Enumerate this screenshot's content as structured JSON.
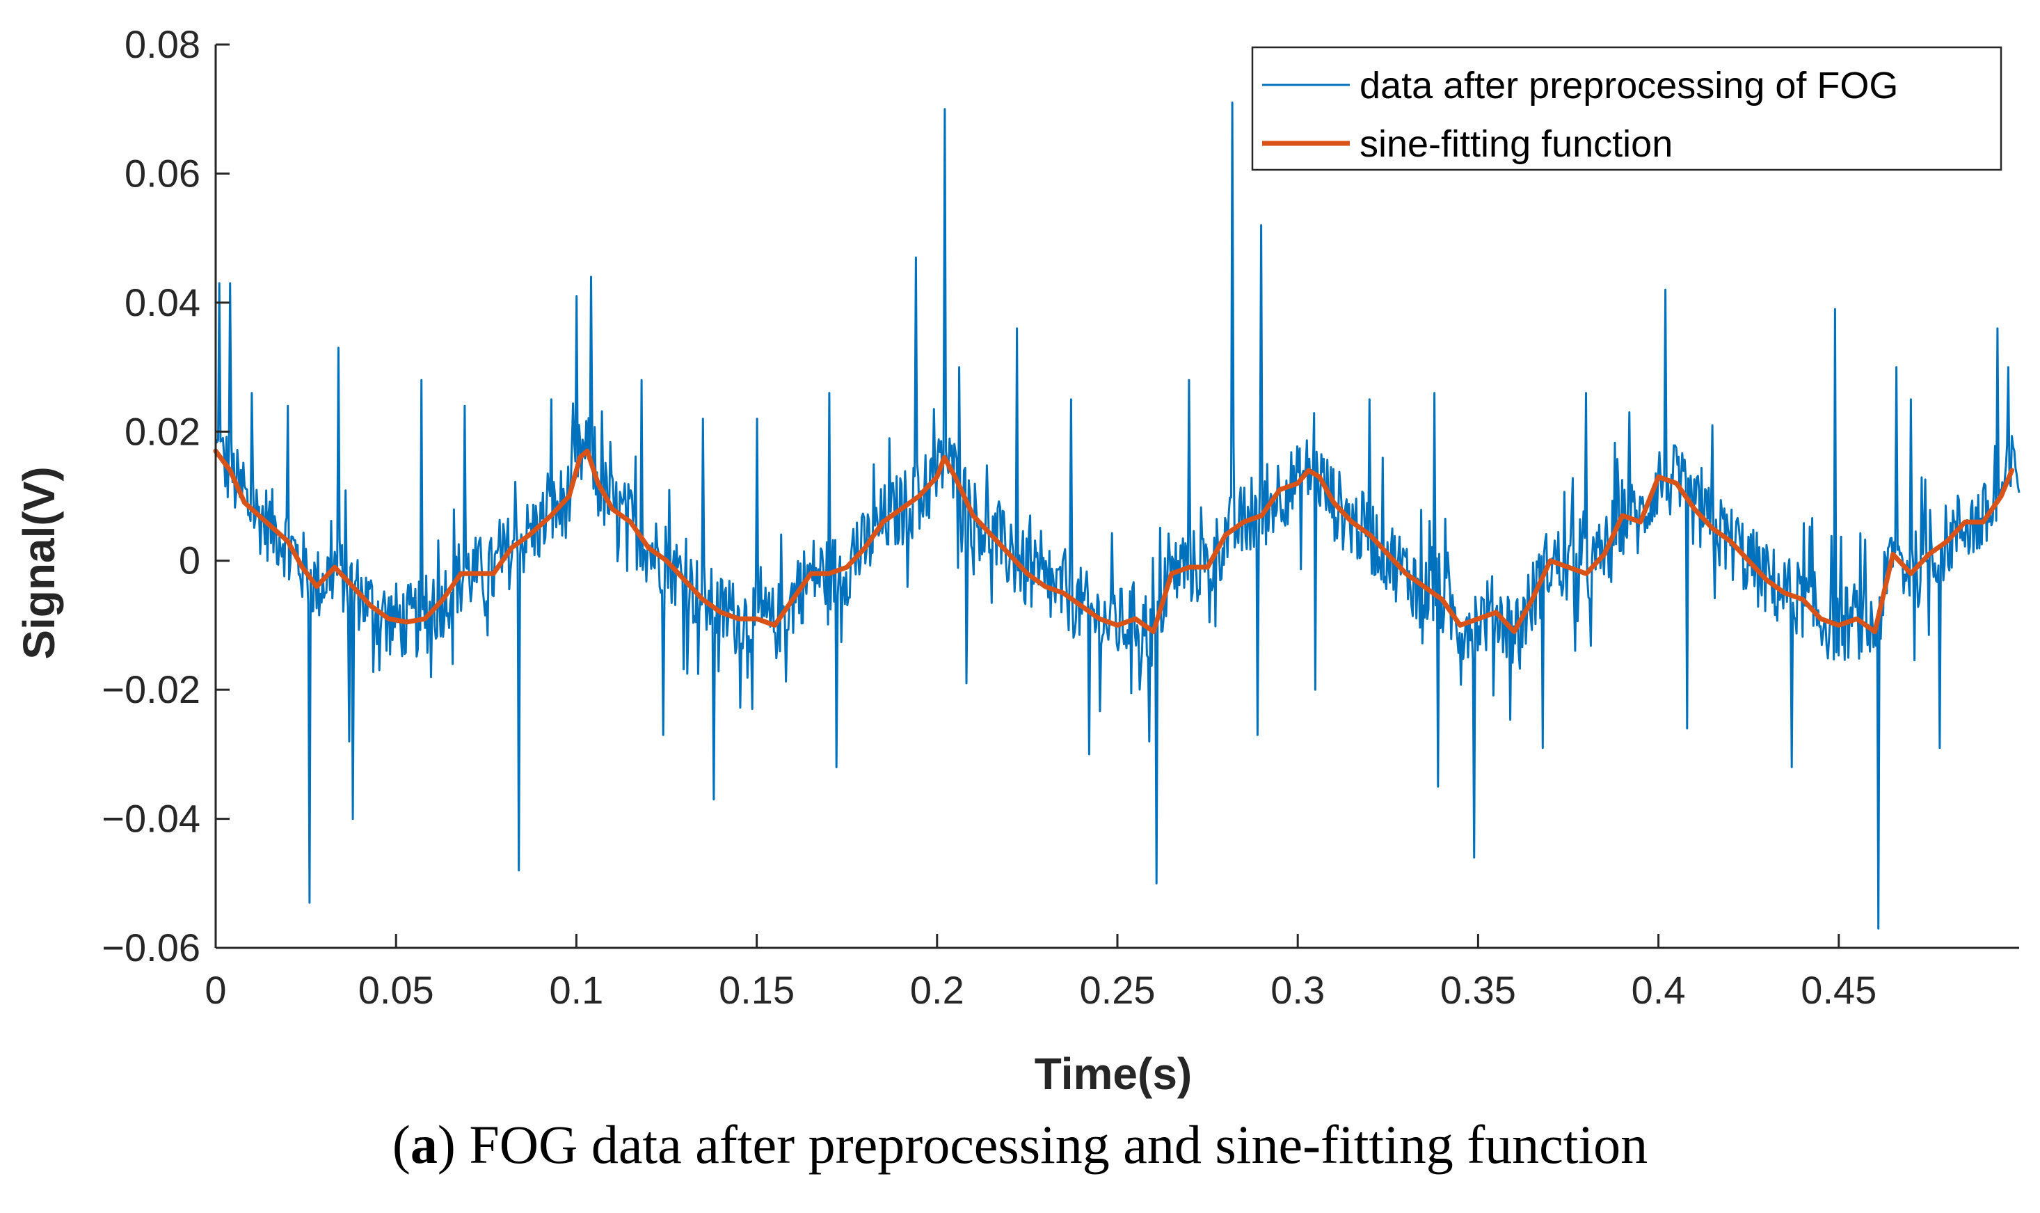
{
  "chart_data": {
    "type": "line",
    "title": "",
    "xlabel": "Time(s)",
    "ylabel": "Signal(V)",
    "xlim": [
      0,
      0.5
    ],
    "ylim": [
      -0.06,
      0.08
    ],
    "xticks": [
      0,
      0.05,
      0.1,
      0.15,
      0.2,
      0.25,
      0.3,
      0.35,
      0.4,
      0.45
    ],
    "xtick_labels": [
      "0",
      "0.05",
      "0.1",
      "0.15",
      "0.2",
      "0.25",
      "0.3",
      "0.35",
      "0.4",
      "0.45"
    ],
    "yticks": [
      -0.06,
      -0.04,
      -0.02,
      0,
      0.02,
      0.04,
      0.06,
      0.08
    ],
    "ytick_labels": [
      "−0.06",
      "−0.04",
      "−0.02",
      "0",
      "0.02",
      "0.04",
      "0.06",
      "0.08"
    ],
    "grid": false,
    "legend_position": "top-right",
    "series": [
      {
        "name": "data after preprocessing of FOG",
        "color": "#0072BD",
        "style": "thin-line",
        "baseline": "same-as-sine-fitting-function",
        "noise_amplitude": 0.006,
        "spikes": [
          {
            "x": 0.001,
            "y": 0.043
          },
          {
            "x": 0.004,
            "y": 0.043
          },
          {
            "x": 0.01,
            "y": 0.026
          },
          {
            "x": 0.02,
            "y": 0.024
          },
          {
            "x": 0.026,
            "y": -0.053
          },
          {
            "x": 0.034,
            "y": 0.033
          },
          {
            "x": 0.037,
            "y": -0.028
          },
          {
            "x": 0.038,
            "y": -0.04
          },
          {
            "x": 0.057,
            "y": 0.028
          },
          {
            "x": 0.069,
            "y": 0.024
          },
          {
            "x": 0.084,
            "y": -0.048
          },
          {
            "x": 0.093,
            "y": 0.025
          },
          {
            "x": 0.1,
            "y": 0.041
          },
          {
            "x": 0.104,
            "y": 0.044
          },
          {
            "x": 0.118,
            "y": 0.028
          },
          {
            "x": 0.124,
            "y": -0.027
          },
          {
            "x": 0.135,
            "y": 0.022
          },
          {
            "x": 0.138,
            "y": -0.037
          },
          {
            "x": 0.15,
            "y": 0.022
          },
          {
            "x": 0.17,
            "y": 0.026
          },
          {
            "x": 0.172,
            "y": -0.032
          },
          {
            "x": 0.194,
            "y": 0.047
          },
          {
            "x": 0.202,
            "y": 0.07
          },
          {
            "x": 0.206,
            "y": 0.03
          },
          {
            "x": 0.208,
            "y": -0.019
          },
          {
            "x": 0.222,
            "y": 0.036
          },
          {
            "x": 0.237,
            "y": 0.025
          },
          {
            "x": 0.242,
            "y": -0.03
          },
          {
            "x": 0.259,
            "y": -0.028
          },
          {
            "x": 0.261,
            "y": -0.05
          },
          {
            "x": 0.27,
            "y": 0.028
          },
          {
            "x": 0.282,
            "y": 0.071
          },
          {
            "x": 0.289,
            "y": -0.027
          },
          {
            "x": 0.29,
            "y": 0.052
          },
          {
            "x": 0.305,
            "y": -0.02
          },
          {
            "x": 0.32,
            "y": 0.025
          },
          {
            "x": 0.338,
            "y": 0.026
          },
          {
            "x": 0.339,
            "y": -0.035
          },
          {
            "x": 0.349,
            "y": -0.046
          },
          {
            "x": 0.368,
            "y": -0.029
          },
          {
            "x": 0.38,
            "y": 0.026
          },
          {
            "x": 0.392,
            "y": 0.023
          },
          {
            "x": 0.402,
            "y": 0.042
          },
          {
            "x": 0.408,
            "y": -0.026
          },
          {
            "x": 0.415,
            "y": 0.021
          },
          {
            "x": 0.437,
            "y": -0.032
          },
          {
            "x": 0.449,
            "y": 0.039
          },
          {
            "x": 0.461,
            "y": -0.057
          },
          {
            "x": 0.466,
            "y": 0.03
          },
          {
            "x": 0.47,
            "y": 0.025
          },
          {
            "x": 0.478,
            "y": -0.029
          },
          {
            "x": 0.494,
            "y": 0.036
          },
          {
            "x": 0.497,
            "y": 0.03
          }
        ]
      },
      {
        "name": "sine-fitting function",
        "color": "#D95319",
        "style": "thick-line",
        "x": [
          0.0,
          0.004,
          0.008,
          0.012,
          0.016,
          0.02,
          0.024,
          0.028,
          0.033,
          0.038,
          0.043,
          0.048,
          0.053,
          0.058,
          0.063,
          0.068,
          0.072,
          0.077,
          0.082,
          0.087,
          0.093,
          0.098,
          0.101,
          0.103,
          0.106,
          0.11,
          0.115,
          0.12,
          0.125,
          0.13,
          0.135,
          0.14,
          0.145,
          0.15,
          0.155,
          0.16,
          0.165,
          0.17,
          0.175,
          0.18,
          0.185,
          0.19,
          0.195,
          0.2,
          0.202,
          0.205,
          0.21,
          0.215,
          0.22,
          0.225,
          0.23,
          0.235,
          0.24,
          0.245,
          0.25,
          0.255,
          0.26,
          0.265,
          0.27,
          0.275,
          0.28,
          0.285,
          0.29,
          0.295,
          0.3,
          0.303,
          0.306,
          0.31,
          0.315,
          0.32,
          0.325,
          0.33,
          0.335,
          0.34,
          0.345,
          0.35,
          0.355,
          0.36,
          0.365,
          0.37,
          0.375,
          0.38,
          0.385,
          0.39,
          0.395,
          0.4,
          0.405,
          0.41,
          0.415,
          0.42,
          0.425,
          0.43,
          0.435,
          0.44,
          0.445,
          0.45,
          0.455,
          0.46,
          0.465,
          0.47,
          0.475,
          0.48,
          0.485,
          0.49,
          0.495,
          0.498
        ],
        "y": [
          0.017,
          0.014,
          0.009,
          0.007,
          0.005,
          0.003,
          -0.001,
          -0.004,
          -0.001,
          -0.004,
          -0.007,
          -0.009,
          -0.0095,
          -0.009,
          -0.006,
          -0.002,
          -0.002,
          -0.002,
          0.002,
          0.004,
          0.007,
          0.01,
          0.016,
          0.017,
          0.012,
          0.008,
          0.006,
          0.002,
          0.0,
          -0.003,
          -0.006,
          -0.008,
          -0.009,
          -0.009,
          -0.01,
          -0.006,
          -0.002,
          -0.002,
          -0.001,
          0.002,
          0.006,
          0.008,
          0.01,
          0.013,
          0.016,
          0.013,
          0.007,
          0.004,
          0.001,
          -0.002,
          -0.004,
          -0.005,
          -0.007,
          -0.009,
          -0.01,
          -0.009,
          -0.011,
          -0.002,
          -0.001,
          -0.001,
          0.004,
          0.006,
          0.007,
          0.011,
          0.012,
          0.014,
          0.013,
          0.009,
          0.006,
          0.004,
          0.001,
          -0.002,
          -0.004,
          -0.006,
          -0.01,
          -0.009,
          -0.008,
          -0.011,
          -0.006,
          0.0,
          -0.001,
          -0.002,
          0.001,
          0.007,
          0.006,
          0.013,
          0.012,
          0.008,
          0.005,
          0.003,
          0.0,
          -0.003,
          -0.005,
          -0.006,
          -0.009,
          -0.01,
          -0.009,
          -0.011,
          0.001,
          -0.002,
          0.001,
          0.003,
          0.006,
          0.006,
          0.01,
          0.014
        ]
      }
    ]
  },
  "legend": {
    "entries": [
      "data after preprocessing of FOG",
      "sine-fitting function"
    ]
  },
  "caption": {
    "panel_letter": "a",
    "text": "FOG data after preprocessing and sine-fitting function"
  }
}
